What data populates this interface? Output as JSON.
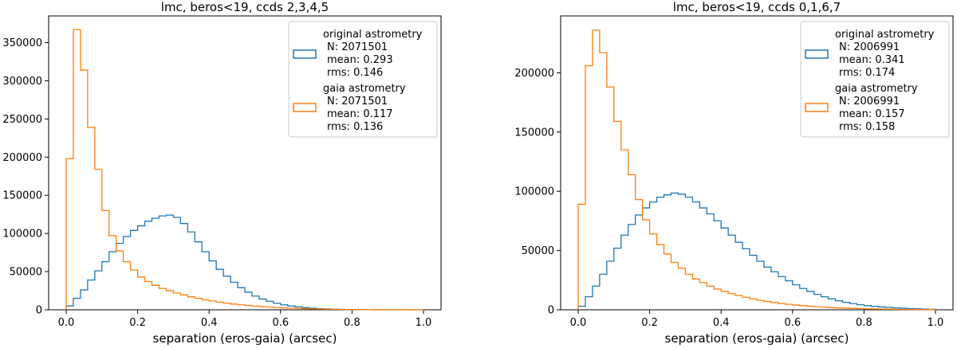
{
  "colors": {
    "original": "#1f77b4",
    "gaia": "#ff7f0e"
  },
  "chart_data": [
    {
      "type": "histogram-step",
      "title": "lmc, beros<19, ccds 2,3,4,5",
      "xlabel": "separation (eros-gaia) (arcsec)",
      "xlim": [
        0.0,
        1.0
      ],
      "ylim": [
        0,
        385000
      ],
      "xticks": [
        0.0,
        0.2,
        0.4,
        0.6,
        0.8,
        1.0
      ],
      "xtick_labels": [
        "0.0",
        "0.2",
        "0.4",
        "0.6",
        "0.8",
        "1.0"
      ],
      "yticks": [
        0,
        50000,
        100000,
        150000,
        200000,
        250000,
        300000,
        350000
      ],
      "ytick_labels": [
        "0",
        "50000",
        "100000",
        "150000",
        "200000",
        "250000",
        "300000",
        "350000"
      ],
      "legend_position": "top-right",
      "bin_width": 0.02,
      "series": [
        {
          "name": "original astrometry",
          "legend_lines": [
            "original astrometry",
            "N: 2071501",
            "mean: 0.293",
            "rms: 0.146"
          ],
          "values": [
            5000,
            15000,
            26000,
            39000,
            51000,
            63000,
            76000,
            87000,
            96000,
            104000,
            110000,
            116000,
            120000,
            123000,
            124000,
            121000,
            113000,
            102000,
            89000,
            76000,
            64000,
            53000,
            44000,
            36000,
            29000,
            23000,
            18000,
            14000,
            11000,
            8500,
            6500,
            5000,
            3800,
            2800,
            2100,
            1500,
            1100,
            800,
            550,
            380,
            260,
            180,
            120,
            80,
            50,
            30,
            20,
            10,
            6,
            3
          ]
        },
        {
          "name": "gaia astrometry",
          "legend_lines": [
            "gaia astrometry",
            "N: 2071501",
            "mean: 0.117",
            "rms: 0.136"
          ],
          "values": [
            198000,
            367000,
            314000,
            239000,
            184000,
            130000,
            97000,
            77000,
            63000,
            52000,
            43000,
            37000,
            32000,
            28000,
            25000,
            22000,
            19500,
            17000,
            15000,
            13000,
            11500,
            10000,
            8700,
            7500,
            6500,
            5600,
            4800,
            4100,
            3500,
            3000,
            2500,
            2100,
            1800,
            1500,
            1200,
            1000,
            800,
            650,
            500,
            400,
            300,
            230,
            170,
            120,
            90,
            60,
            40,
            25,
            15,
            8
          ]
        }
      ]
    },
    {
      "type": "histogram-step",
      "title": "lmc, beros<19, ccds 0,1,6,7",
      "xlabel": "separation (eros-gaia) (arcsec)",
      "xlim": [
        0.0,
        1.0
      ],
      "ylim": [
        0,
        248000
      ],
      "xticks": [
        0.0,
        0.2,
        0.4,
        0.6,
        0.8,
        1.0
      ],
      "xtick_labels": [
        "0.0",
        "0.2",
        "0.4",
        "0.6",
        "0.8",
        "1.0"
      ],
      "yticks": [
        0,
        50000,
        100000,
        150000,
        200000
      ],
      "ytick_labels": [
        "0",
        "50000",
        "100000",
        "150000",
        "200000"
      ],
      "legend_position": "top-right",
      "bin_width": 0.02,
      "series": [
        {
          "name": "original astrometry",
          "legend_lines": [
            "original astrometry",
            "N: 2006991",
            "mean: 0.341",
            "rms: 0.174"
          ],
          "values": [
            3000,
            11000,
            20000,
            30000,
            41000,
            52000,
            63000,
            72000,
            80000,
            86000,
            91000,
            95000,
            97000,
            98500,
            97500,
            95000,
            91000,
            86000,
            81000,
            75000,
            69000,
            63000,
            57000,
            51500,
            46000,
            41000,
            36000,
            32000,
            28000,
            24500,
            21000,
            18000,
            15500,
            13000,
            11000,
            9200,
            7600,
            6300,
            5200,
            4300,
            3500,
            2900,
            2400,
            2000,
            1600,
            1300,
            1000,
            800,
            600,
            400
          ]
        },
        {
          "name": "gaia astrometry",
          "legend_lines": [
            "gaia astrometry",
            "N: 2006991",
            "mean: 0.157",
            "rms: 0.158"
          ],
          "values": [
            89000,
            206000,
            236000,
            217000,
            188000,
            159000,
            135000,
            114000,
            93000,
            76000,
            64000,
            55000,
            47000,
            40000,
            35000,
            30000,
            26000,
            23000,
            20000,
            17500,
            15500,
            13500,
            12000,
            10500,
            9200,
            8000,
            7000,
            6100,
            5300,
            4600,
            4000,
            3500,
            3000,
            2600,
            2200,
            1900,
            1600,
            1400,
            1200,
            1000,
            850,
            700,
            600,
            500,
            400,
            330,
            270,
            210,
            160,
            120
          ]
        }
      ]
    }
  ]
}
